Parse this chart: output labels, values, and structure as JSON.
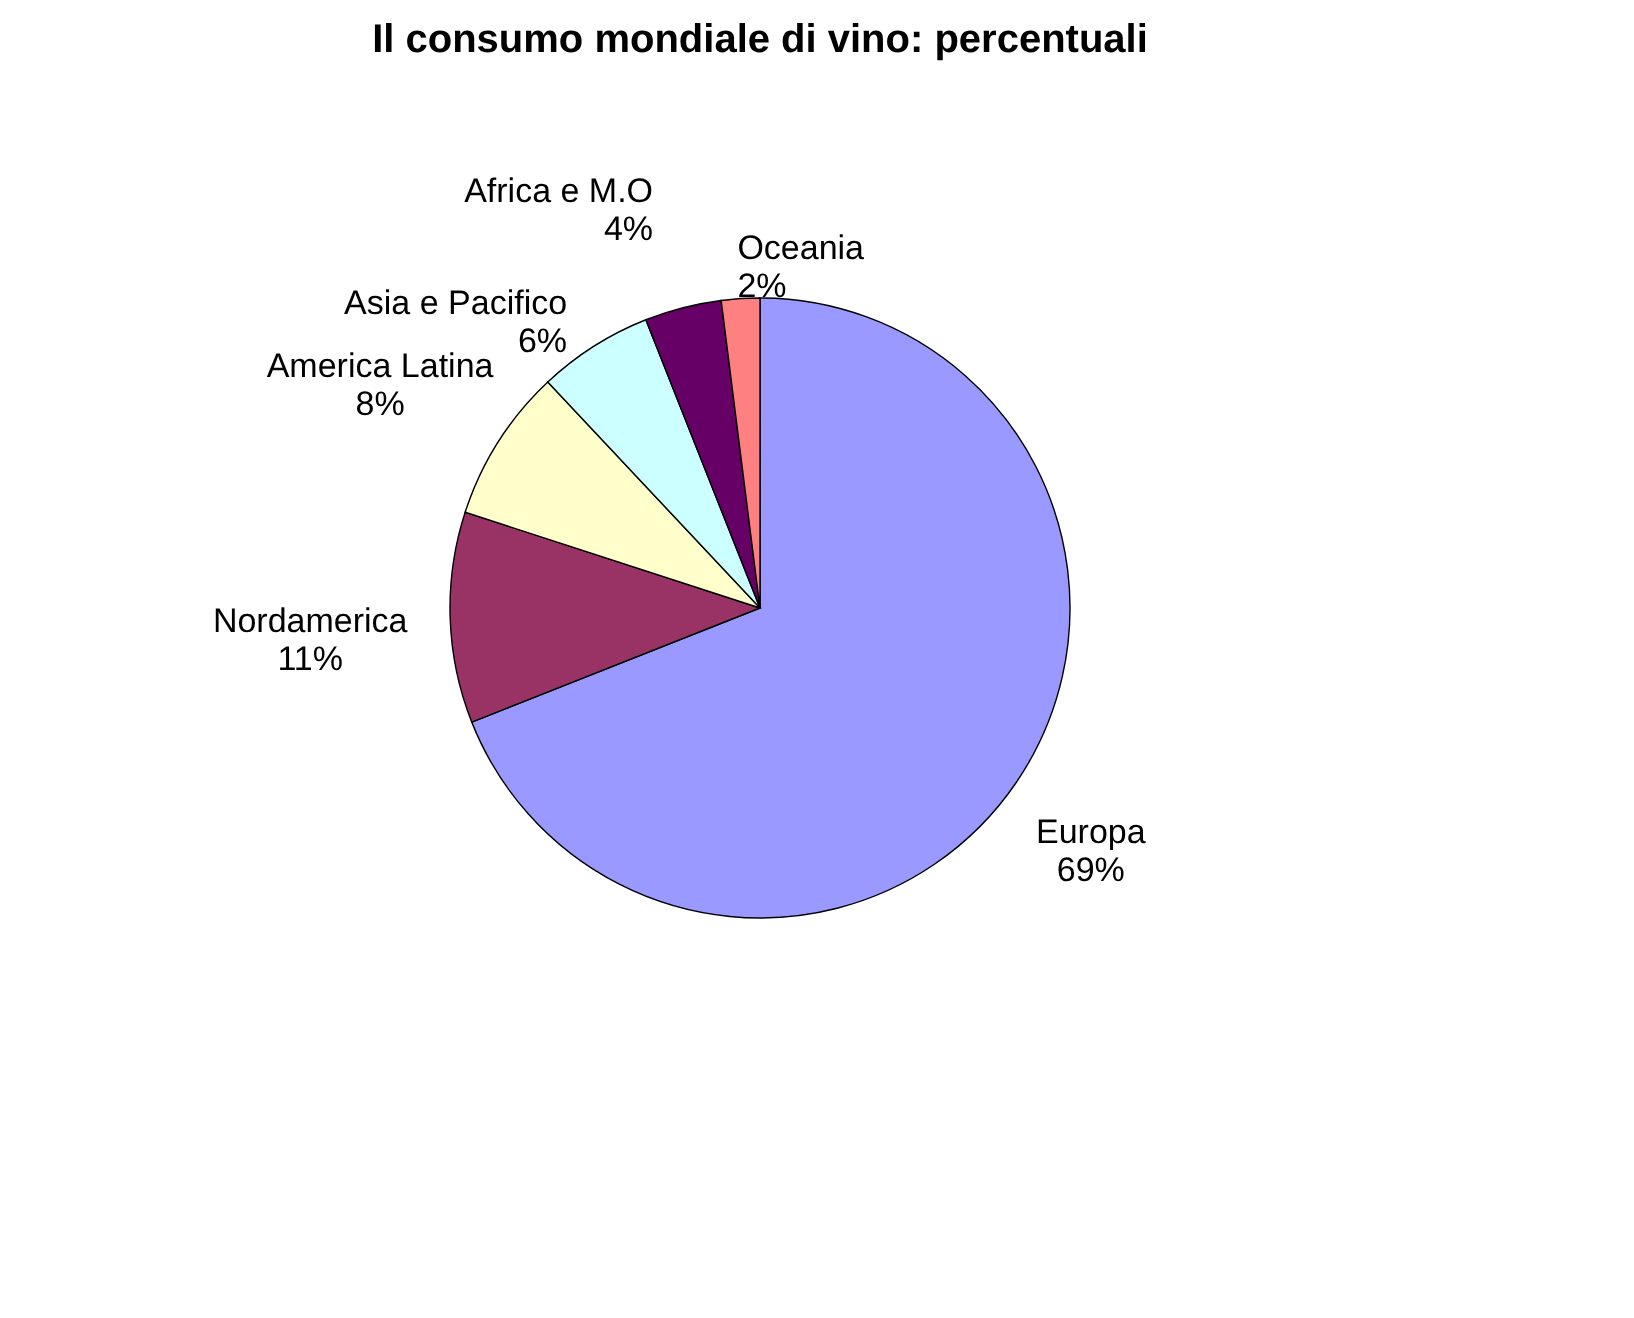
{
  "chart_data": {
    "type": "pie",
    "title": "Il consumo mondiale di vino: percentuali",
    "categories": [
      "Europa",
      "Nordamerica",
      "America Latina",
      "Asia e Pacifico",
      "Africa e M.O",
      "Oceania"
    ],
    "values": [
      69,
      11,
      8,
      6,
      4,
      2
    ],
    "colors": [
      "#9999ff",
      "#993366",
      "#ffffcc",
      "#ccffff",
      "#660066",
      "#ff8080"
    ],
    "value_labels": [
      "69%",
      "11%",
      "8%",
      "6%",
      "4%",
      "2%"
    ],
    "legend": false
  }
}
